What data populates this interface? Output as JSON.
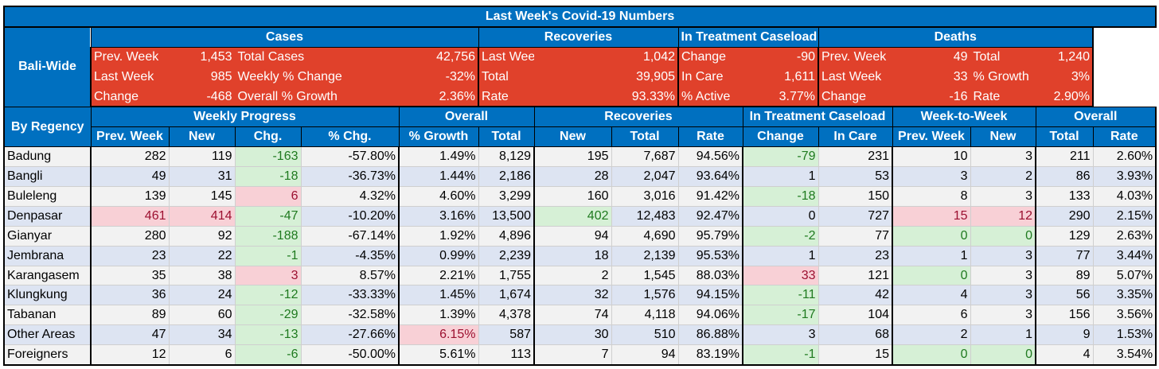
{
  "title": "Last Week's Covid-19 Numbers",
  "bali": {
    "label": "Bali-Wide",
    "groups": {
      "cases": "Cases",
      "recoveries": "Recoveries",
      "treatment": "In Treatment Caseload",
      "deaths": "Deaths"
    },
    "rows": [
      [
        "Prev. Week",
        "1,453",
        "Total Cases",
        "42,756",
        "Last Week",
        "1,042",
        "Change",
        "-90",
        "Prev. Week",
        "49",
        "Total",
        "1,240"
      ],
      [
        "Last Week",
        "985",
        "Weekly % Change",
        "-32%",
        "Total",
        "39,905",
        "In Care",
        "1,611",
        "Last Week",
        "33",
        "% Growth",
        "3%"
      ],
      [
        "Change",
        "-468",
        "Overall % Growth",
        "2.36%",
        "Rate",
        "93.33%",
        "% Active",
        "3.77%",
        "Change",
        "-16",
        "Rate",
        "2.90%"
      ]
    ]
  },
  "regency": {
    "label": "By Regency",
    "groups": {
      "weekly": "Weekly Progress",
      "overall": "Overall",
      "recoveries": "Recoveries",
      "treatment": "In Treatment Caseload",
      "w2w": "Week-to-Week",
      "overall2": "Overall"
    },
    "columns": [
      "Prev. Week",
      "New",
      "Chg.",
      "% Chg.",
      "% Growth",
      "Total",
      "New",
      "Total",
      "Rate",
      "Change",
      "In Care",
      "Prev. Week",
      "New",
      "Total",
      "Rate"
    ],
    "rows": [
      {
        "name": "Badung",
        "v": [
          "282",
          "119",
          "-163",
          "-57.80%",
          "1.49%",
          "8,129",
          "195",
          "7,687",
          "94.56%",
          "-79",
          "231",
          "10",
          "3",
          "211",
          "2.60%"
        ],
        "hl": {
          "2": "good",
          "9": "good"
        }
      },
      {
        "name": "Bangli",
        "v": [
          "49",
          "31",
          "-18",
          "-36.73%",
          "1.44%",
          "2,186",
          "28",
          "2,047",
          "93.64%",
          "1",
          "53",
          "3",
          "2",
          "86",
          "3.93%"
        ],
        "hl": {
          "2": "good"
        }
      },
      {
        "name": "Buleleng",
        "v": [
          "139",
          "145",
          "6",
          "4.32%",
          "4.60%",
          "3,299",
          "160",
          "3,016",
          "91.42%",
          "-18",
          "150",
          "8",
          "3",
          "133",
          "4.03%"
        ],
        "hl": {
          "2": "bad",
          "9": "good"
        }
      },
      {
        "name": "Denpasar",
        "v": [
          "461",
          "414",
          "-47",
          "-10.20%",
          "3.16%",
          "13,500",
          "402",
          "12,483",
          "92.47%",
          "0",
          "727",
          "15",
          "12",
          "290",
          "2.15%"
        ],
        "hl": {
          "0": "bad",
          "1": "bad",
          "2": "good",
          "6": "good",
          "11": "bad",
          "12": "bad"
        }
      },
      {
        "name": "Gianyar",
        "v": [
          "280",
          "92",
          "-188",
          "-67.14%",
          "1.92%",
          "4,896",
          "94",
          "4,690",
          "95.79%",
          "-2",
          "77",
          "0",
          "0",
          "129",
          "2.63%"
        ],
        "hl": {
          "2": "good",
          "9": "good",
          "11": "good",
          "12": "good"
        }
      },
      {
        "name": "Jembrana",
        "v": [
          "23",
          "22",
          "-1",
          "-4.35%",
          "0.99%",
          "2,239",
          "18",
          "2,139",
          "95.53%",
          "1",
          "23",
          "1",
          "3",
          "77",
          "3.44%"
        ],
        "hl": {
          "2": "good"
        }
      },
      {
        "name": "Karangasem",
        "v": [
          "35",
          "38",
          "3",
          "8.57%",
          "2.21%",
          "1,755",
          "2",
          "1,545",
          "88.03%",
          "33",
          "121",
          "0",
          "3",
          "89",
          "5.07%"
        ],
        "hl": {
          "2": "bad",
          "9": "bad",
          "11": "good"
        }
      },
      {
        "name": "Klungkung",
        "v": [
          "36",
          "24",
          "-12",
          "-33.33%",
          "1.45%",
          "1,674",
          "32",
          "1,576",
          "94.15%",
          "-11",
          "42",
          "4",
          "3",
          "56",
          "3.35%"
        ],
        "hl": {
          "2": "good",
          "9": "good"
        }
      },
      {
        "name": "Tabanan",
        "v": [
          "89",
          "60",
          "-29",
          "-32.58%",
          "1.39%",
          "4,378",
          "74",
          "4,118",
          "94.06%",
          "-17",
          "104",
          "6",
          "3",
          "156",
          "3.56%"
        ],
        "hl": {
          "2": "good",
          "9": "good"
        }
      },
      {
        "name": "Other Areas",
        "v": [
          "47",
          "34",
          "-13",
          "-27.66%",
          "6.15%",
          "587",
          "30",
          "510",
          "86.88%",
          "3",
          "68",
          "2",
          "1",
          "9",
          "1.53%"
        ],
        "hl": {
          "2": "good",
          "4": "bad"
        }
      },
      {
        "name": "Foreigners",
        "v": [
          "12",
          "6",
          "-6",
          "-50.00%",
          "5.61%",
          "113",
          "7",
          "94",
          "83.19%",
          "-1",
          "15",
          "0",
          "0",
          "4",
          "3.54%"
        ],
        "hl": {
          "2": "good",
          "9": "good",
          "11": "good",
          "12": "good"
        }
      }
    ]
  },
  "colors": {
    "header_blue": "#0070c0",
    "summary_red": "#e0412b",
    "good_fill": "#d6f0d6",
    "bad_fill": "#f8d0d6",
    "band_blue": "#dde4f2",
    "band_grey": "#f2f2f2"
  }
}
